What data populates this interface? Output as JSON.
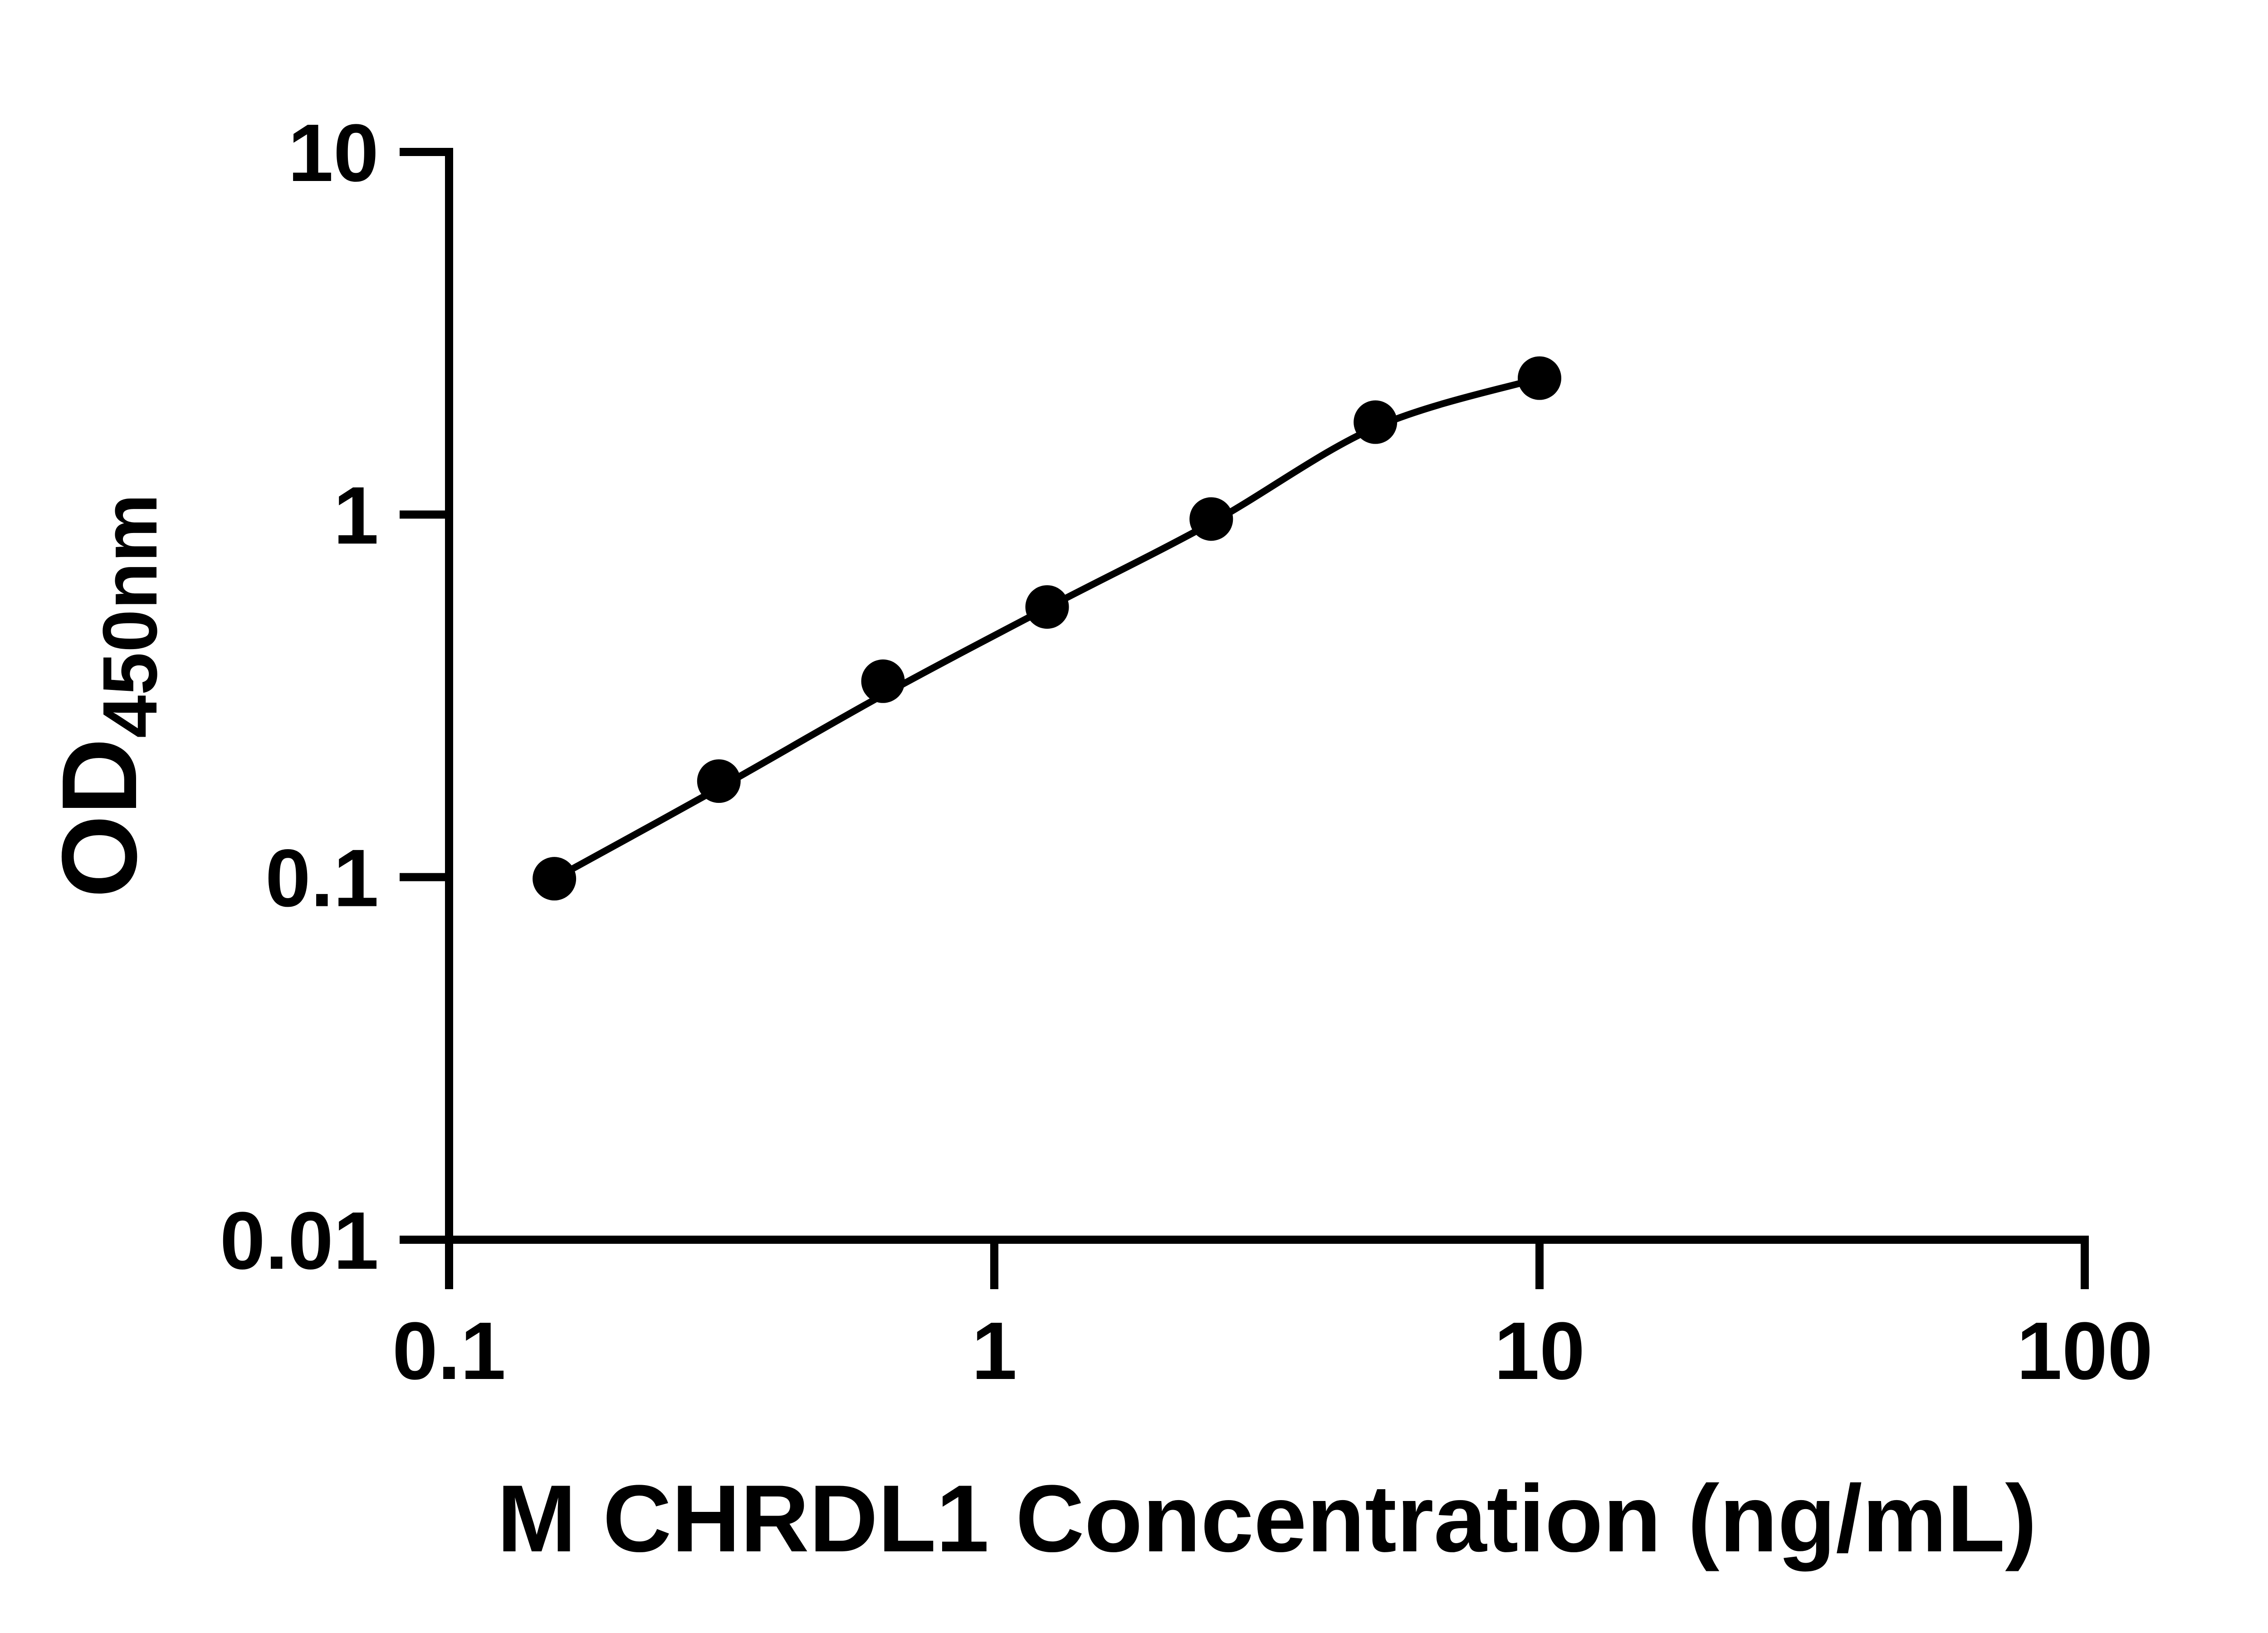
{
  "chart_data": {
    "type": "scatter",
    "title": "",
    "xlabel": "M CHRDL1 Concentration (ng/mL)",
    "ylabel_main": "OD",
    "ylabel_sub": "450nm",
    "x_scale": "log",
    "y_scale": "log",
    "xlim": [
      0.1,
      100
    ],
    "ylim": [
      0.01,
      10
    ],
    "grid": false,
    "legend": false,
    "x_ticks": [
      {
        "value": 0.1,
        "label": "0.1"
      },
      {
        "value": 1,
        "label": "1"
      },
      {
        "value": 10,
        "label": "10"
      },
      {
        "value": 100,
        "label": "100"
      }
    ],
    "y_ticks": [
      {
        "value": 10,
        "label": "10"
      },
      {
        "value": 1,
        "label": "1"
      },
      {
        "value": 0.1,
        "label": "0.1"
      },
      {
        "value": 0.01,
        "label": "0.01"
      }
    ],
    "series": [
      {
        "marker": "filled-circle",
        "color": "#000000",
        "points": [
          {
            "x": 0.156,
            "y": 0.099
          },
          {
            "x": 0.3125,
            "y": 0.184
          },
          {
            "x": 0.625,
            "y": 0.347
          },
          {
            "x": 1.25,
            "y": 0.556
          },
          {
            "x": 2.5,
            "y": 0.972
          },
          {
            "x": 5,
            "y": 1.798
          },
          {
            "x": 10,
            "y": 2.378
          }
        ]
      }
    ],
    "fit_curve": {
      "x": [
        0.156,
        0.3125,
        0.625,
        1.25,
        2.5,
        5,
        10
      ],
      "y": [
        0.099,
        0.176,
        0.318,
        0.553,
        0.948,
        1.74,
        2.378
      ]
    }
  },
  "colors": {
    "background": "#ffffff",
    "foreground": "#000000"
  }
}
